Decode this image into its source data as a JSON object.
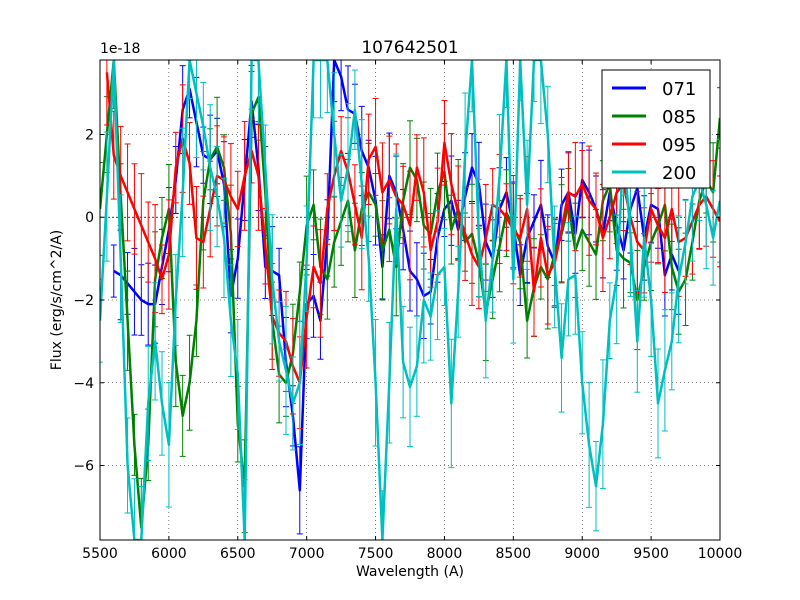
{
  "chart_data": {
    "type": "line",
    "title": "107642501",
    "xlabel": "Wavelength (A)",
    "ylabel": "Flux (erg/s/cm^2/A)",
    "offset_label": "1e-18",
    "xlim": [
      5500,
      10000
    ],
    "ylim": [
      -7.8,
      3.8
    ],
    "xticks": [
      5500,
      6000,
      6500,
      7000,
      7500,
      8000,
      8500,
      9000,
      9500,
      10000
    ],
    "yticks": [
      -6,
      -4,
      -2,
      0,
      2
    ],
    "ytick_labels": [
      "−6",
      "−4",
      "−2",
      "0",
      "2"
    ],
    "grid": true,
    "legend_position": "top-right",
    "zero_line": true,
    "series": [
      {
        "name": "071",
        "color": "#0000ff",
        "x": [
          5600,
          5650,
          5700,
          5750,
          5800,
          5850,
          5900,
          5950,
          6000,
          6050,
          6100,
          6150,
          6200,
          6250,
          6300,
          6350,
          6400,
          6450,
          6500,
          6550,
          6600,
          6650,
          6700,
          6750,
          6800,
          6850,
          6900,
          6950,
          7000,
          7050,
          7100,
          7150,
          7200,
          7250,
          7300,
          7350,
          7400,
          7450,
          7500,
          7550,
          7600,
          7650,
          7700,
          7750,
          7800,
          7850,
          7900,
          7950,
          8000,
          8050,
          8100,
          8150,
          8200,
          8250,
          8300,
          8350,
          8400,
          8450,
          8500,
          8550,
          8600,
          8650,
          8700,
          8750,
          8800,
          8850,
          8900,
          8950,
          9000,
          9050,
          9100,
          9150,
          9200,
          9250,
          9300,
          9350,
          9400,
          9450,
          9500,
          9550,
          9600,
          9650,
          9700
        ],
        "y": [
          -1.3,
          -1.4,
          -1.6,
          -1.8,
          -2.0,
          -2.1,
          -2.1,
          -1.2,
          -0.3,
          0.9,
          2.6,
          3.1,
          2.3,
          1.5,
          1.4,
          1.6,
          0.8,
          -1.9,
          -1.0,
          0.9,
          2.8,
          1.2,
          -1.2,
          -1.3,
          -1.4,
          -3.5,
          -4.8,
          -6.6,
          -2.1,
          -1.9,
          -2.5,
          -0.5,
          3.8,
          3.4,
          2.6,
          2.5,
          1.6,
          1.2,
          0.4,
          -1.2,
          1.0,
          0.6,
          -0.3,
          -1.3,
          -1.5,
          -1.9,
          -1.8,
          -0.5,
          0.2,
          0.4,
          -0.3,
          0.5,
          1.2,
          0.8,
          -0.6,
          -1.0,
          0.2,
          0.6,
          -0.2,
          -1.4,
          -0.5,
          -0.1,
          0.3,
          -0.7,
          -1.1,
          0.3,
          0.6,
          -0.4,
          0.9,
          0.6,
          0.2,
          -0.4,
          0.6,
          -0.2,
          -0.8,
          0.2,
          0.7,
          -0.5,
          0.3,
          0.2,
          -1.4,
          -0.9,
          -1.3
        ]
      },
      {
        "name": "085",
        "color": "#008000",
        "x": [
          5500,
          5550,
          5600,
          5650,
          5700,
          5750,
          5800,
          5850,
          5900,
          5950,
          6000,
          6050,
          6100,
          6150,
          6200,
          6250,
          6300,
          6350,
          6400,
          6450,
          6500,
          6550,
          6600,
          6650,
          6700,
          6750,
          6800,
          6850,
          6900,
          6950,
          7000,
          7050,
          7100,
          7150,
          7200,
          7250,
          7300,
          7350,
          7400,
          7450,
          7500,
          7550,
          7600,
          7650,
          7700,
          7750,
          7800,
          7850,
          7900,
          7950,
          8000,
          8050,
          8100,
          8150,
          8200,
          8250,
          8300,
          8350,
          8400,
          8450,
          8500,
          8550,
          8600,
          8650,
          8700,
          8750,
          8800,
          8850,
          8900,
          8950,
          9000,
          9050,
          9100,
          9150,
          9200,
          9250,
          9300,
          9350,
          9400,
          9450,
          9500,
          9550,
          9600,
          9650,
          9700,
          9750,
          9800,
          9850,
          9900,
          9950,
          10000
        ],
        "y": [
          0.2,
          2.0,
          3.8,
          0.5,
          -2.5,
          -5.5,
          -7.5,
          -5.5,
          -1.5,
          -0.5,
          0.2,
          -3.5,
          -4.8,
          -4.0,
          -2.5,
          0.4,
          1.4,
          1.7,
          1.2,
          -0.4,
          -5.0,
          -6.5,
          2.5,
          2.9,
          0.6,
          -2.5,
          -3.8,
          -4.0,
          -3.3,
          -1.8,
          -0.2,
          0.3,
          -1.2,
          -1.5,
          -0.6,
          -0.1,
          0.4,
          -0.8,
          0.2,
          0.6,
          0.3,
          -0.8,
          -0.3,
          -1.2,
          0.4,
          1.2,
          0.9,
          -0.2,
          -0.4,
          0.6,
          1.1,
          -0.3,
          0.2,
          -0.6,
          -0.4,
          -1.1,
          -2.3,
          -1.5,
          -0.7,
          0.1,
          -0.2,
          -0.6,
          -2.5,
          -1.7,
          -1.2,
          -1.5,
          -0.9,
          -0.4,
          0.3,
          -0.8,
          -0.3,
          -0.6,
          -0.9,
          0.4,
          0.8,
          -0.8,
          -1.0,
          -1.1,
          -2.0,
          -1.2,
          -0.6,
          -0.2,
          0.3,
          -1.2,
          -1.8,
          -1.5,
          -0.6,
          0.4,
          0.9,
          0.6,
          2.4
        ]
      },
      {
        "name": "095",
        "color": "#ff0000",
        "x": [
          5550,
          5600,
          5650,
          5700,
          5750,
          5800,
          5850,
          5900,
          5950,
          6000,
          6050,
          6100,
          6150,
          6200,
          6250,
          6300,
          6350,
          6400,
          6450,
          6500,
          6550,
          6600,
          6650,
          6700,
          6750,
          6800,
          6850,
          6900,
          6950,
          7000,
          7050,
          7100,
          7150,
          7200,
          7250,
          7300,
          7350,
          7400,
          7450,
          7500,
          7550,
          7600,
          7650,
          7700,
          7750,
          7800,
          7850,
          7900,
          7950,
          8000,
          8050,
          8100,
          8150,
          8200,
          8250,
          8300,
          8350,
          8400,
          8450,
          8500,
          8550,
          8600,
          8650,
          8700,
          8750,
          8800,
          8850,
          8900,
          8950,
          9000,
          9050,
          9100,
          9150,
          9200,
          9250,
          9300,
          9350,
          9400,
          9450,
          9500,
          9550,
          9600,
          9650,
          9700,
          9750,
          9800,
          9850,
          9900,
          9950,
          10000
        ],
        "y": [
          3.5,
          1.5,
          1.0,
          0.6,
          0.2,
          -0.2,
          -0.6,
          -1.0,
          -1.5,
          -0.9,
          1.2,
          1.9,
          1.3,
          -0.5,
          -0.6,
          0.2,
          1.0,
          0.9,
          0.5,
          0.2,
          1.0,
          1.6,
          1.0,
          -0.7,
          -2.4,
          -2.8,
          -3.0,
          -3.6,
          -4.0,
          -2.4,
          -1.2,
          -1.6,
          0.2,
          1.0,
          1.6,
          1.1,
          0.3,
          -0.5,
          1.4,
          1.7,
          0.6,
          0.9,
          0.5,
          0.3,
          -0.2,
          1.2,
          0.6,
          -0.8,
          -0.1,
          1.8,
          0.8,
          0.1,
          -0.4,
          -0.9,
          -1.2,
          -0.5,
          0.3,
          0.2,
          0.0,
          -0.3,
          -0.5,
          0.2,
          -1.8,
          -0.5,
          -1.4,
          -1.1,
          -0.3,
          0.6,
          0.5,
          0.8,
          0.4,
          0.2,
          -0.5,
          0.0,
          0.6,
          0.8,
          0.0,
          -0.6,
          -0.8,
          0.2,
          -0.2,
          -0.5,
          0.2,
          -0.6,
          -0.5,
          -0.1,
          0.3,
          0.5,
          0.2,
          -0.1
        ]
      },
      {
        "name": "200",
        "color": "#00bfbf",
        "x": [
          5500,
          5550,
          5600,
          5650,
          5700,
          5750,
          5800,
          5850,
          5900,
          5950,
          6000,
          6050,
          6100,
          6150,
          6200,
          6250,
          6300,
          6350,
          6400,
          6450,
          6500,
          6550,
          6600,
          6650,
          6700,
          6750,
          6800,
          6850,
          6900,
          6950,
          7000,
          7050,
          7100,
          7150,
          7200,
          7250,
          7300,
          7350,
          7400,
          7450,
          7500,
          7550,
          7600,
          7650,
          7700,
          7750,
          7800,
          7850,
          7900,
          7950,
          8000,
          8050,
          8100,
          8150,
          8200,
          8250,
          8300,
          8350,
          8400,
          8450,
          8500,
          8550,
          8600,
          8650,
          8700,
          8750,
          8800,
          8850,
          8900,
          8950,
          9000,
          9050,
          9100,
          9150,
          9200,
          9250,
          9300,
          9350,
          9400,
          9450,
          9500,
          9550,
          9600,
          9650,
          9700,
          9750,
          9800,
          9850,
          9900,
          9950,
          10000
        ],
        "y": [
          -2.5,
          0.5,
          3.8,
          -1.0,
          -6.0,
          -7.8,
          -7.8,
          -4.5,
          -3.0,
          -4.5,
          -5.5,
          -2.0,
          0.6,
          3.8,
          3.0,
          2.2,
          1.2,
          0.5,
          -0.5,
          -2.5,
          -3.8,
          -7.8,
          3.8,
          3.8,
          1.2,
          -1.5,
          -3.0,
          -3.7,
          -4.5,
          -4.0,
          -1.0,
          3.8,
          3.8,
          3.8,
          2.0,
          0.4,
          1.2,
          2.6,
          0.8,
          -1.0,
          -4.0,
          -7.8,
          -4.0,
          0.2,
          -3.5,
          -4.1,
          -3.6,
          -2.0,
          -2.4,
          -1.4,
          -1.2,
          -4.5,
          -1.8,
          1.5,
          3.8,
          -0.5,
          -2.5,
          -1.0,
          1.0,
          3.8,
          -1.5,
          3.8,
          0.3,
          3.8,
          3.8,
          2.0,
          -1.2,
          -3.4,
          -1.5,
          -1.4,
          -4.0,
          -5.5,
          -6.5,
          -5.0,
          -2.5,
          -1.5,
          1.6,
          -0.4,
          -3.0,
          -0.5,
          -2.0,
          -4.5,
          -3.7,
          -3.0,
          -1.5,
          -0.6,
          0.5,
          0.9,
          0.3,
          -0.5,
          0.4
        ]
      }
    ]
  }
}
